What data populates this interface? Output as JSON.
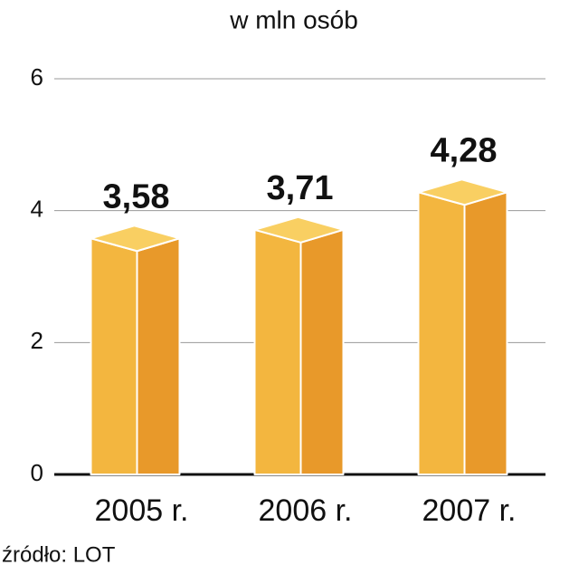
{
  "chart_data": {
    "type": "bar3d",
    "title": "w mln osób",
    "categories": [
      "2005 r.",
      "2006 r.",
      "2007 r."
    ],
    "values": [
      3.58,
      3.71,
      4.28
    ],
    "value_labels": [
      "3,58",
      "3,71",
      "4,28"
    ],
    "colors": {
      "front": "#f3b63f",
      "side": "#e8992a",
      "top": "#f9cf62"
    },
    "ylim": [
      0,
      6
    ],
    "yticks": [
      0,
      2,
      4,
      6
    ],
    "grid": true,
    "source": "źródło: LOT"
  }
}
